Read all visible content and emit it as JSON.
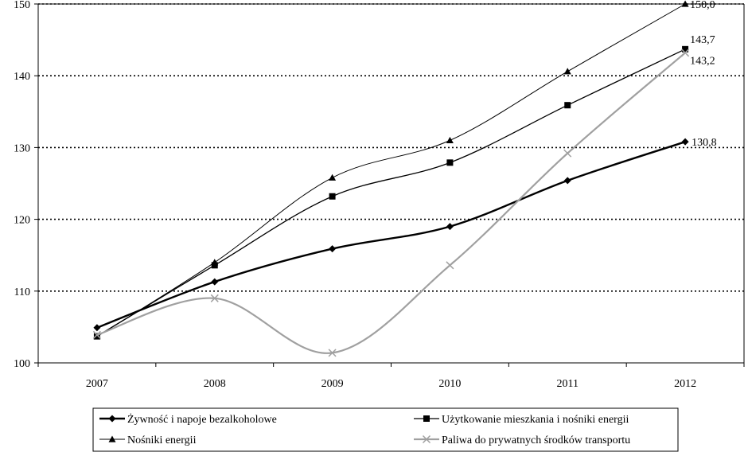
{
  "chart_data": {
    "type": "line",
    "title": "",
    "xlabel": "",
    "ylabel": "",
    "categories": [
      "2007",
      "2008",
      "2009",
      "2010",
      "2011",
      "2012"
    ],
    "ylim": [
      100,
      150
    ],
    "yticks": [
      "100",
      "110",
      "120",
      "130",
      "140",
      "150"
    ],
    "grid": "horizontal dotted",
    "legend_position": "bottom",
    "series": [
      {
        "name": "Żywność i napoje bezalkoholowe",
        "values": [
          104.9,
          111.3,
          115.9,
          119.0,
          125.4,
          130.8
        ],
        "color": "#000000",
        "marker": "diamond",
        "end_label": "130,8"
      },
      {
        "name": "Użytkowanie mieszkania i nośniki energii",
        "values": [
          103.7,
          113.6,
          123.2,
          127.9,
          135.9,
          143.7
        ],
        "color": "#000000",
        "marker": "square",
        "end_label": "143,7"
      },
      {
        "name": "Nośniki energii",
        "values": [
          103.7,
          114.0,
          125.8,
          131.0,
          140.6,
          150.0
        ],
        "color": "#000000",
        "marker": "triangle",
        "end_label": "150,0"
      },
      {
        "name": "Paliwa do prywatnych środków transportu",
        "values": [
          103.9,
          109.0,
          101.4,
          113.6,
          129.2,
          143.2
        ],
        "color": "#a0a0a0",
        "marker": "x",
        "end_label": "143,2"
      }
    ]
  },
  "legend": {
    "items": [
      "Żywność i napoje bezalkoholowe",
      "Użytkowanie mieszkania i nośniki energii",
      "Nośniki energii",
      "Paliwa do prywatnych środków transportu"
    ]
  }
}
